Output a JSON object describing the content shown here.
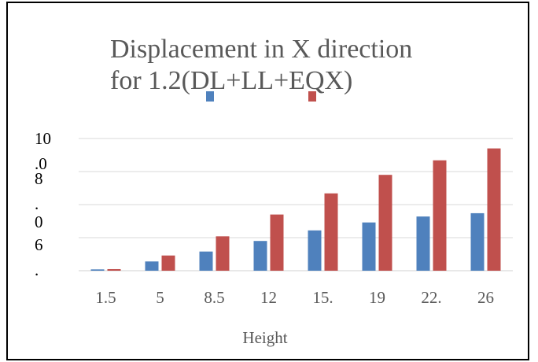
{
  "chart_data": {
    "type": "bar",
    "title_lines": [
      "Displacement in X direction",
      "for 1.2(DL+LL+EQX)"
    ],
    "xlabel": "Height",
    "ylabel": "",
    "categories": [
      "1.5",
      "5",
      "8.5",
      "12",
      "15.",
      "19",
      "22.",
      "26"
    ],
    "y_tick_labels": [
      "10",
      ".0",
      "8",
      ".",
      "0",
      "6",
      "."
    ],
    "ylim": [
      0,
      10
    ],
    "grid": true,
    "legend": "top-center",
    "series": [
      {
        "color": "#4F81BD",
        "values": [
          0.1,
          0.7,
          1.45,
          2.25,
          3.05,
          3.65,
          4.1,
          4.35
        ]
      },
      {
        "color": "#C0504D",
        "values": [
          0.12,
          1.15,
          2.6,
          4.25,
          5.85,
          7.25,
          8.35,
          9.25
        ]
      }
    ]
  }
}
